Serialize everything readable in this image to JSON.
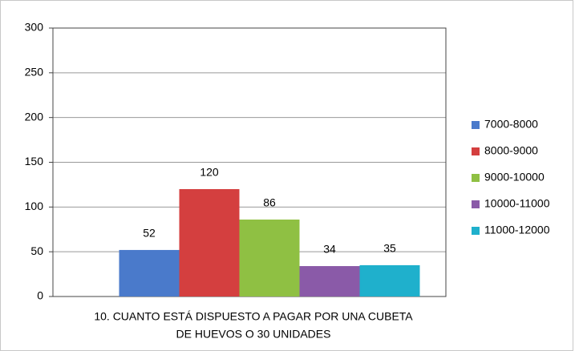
{
  "chart_data": {
    "type": "bar",
    "categories": [
      null
    ],
    "xlabel": [
      "10. CUANTO ESTÁ DISPUESTO A PAGAR POR UNA CUBETA",
      "DE HUEVOS O 30 UNIDADES"
    ],
    "series": [
      {
        "name": "7000-8000",
        "color": "#4a7acb",
        "values": [
          52
        ]
      },
      {
        "name": "8000-9000",
        "color": "#d43f3f",
        "values": [
          120
        ]
      },
      {
        "name": "9000-10000",
        "color": "#8fc043",
        "values": [
          86
        ]
      },
      {
        "name": "10000-11000",
        "color": "#8a5aa8",
        "values": [
          34
        ]
      },
      {
        "name": "11000-12000",
        "color": "#1fb0cc",
        "values": [
          35
        ]
      }
    ],
    "ylim": [
      0,
      300
    ],
    "yticks": [
      0,
      50,
      100,
      150,
      200,
      250,
      300
    ],
    "grid": true,
    "legend": "right"
  }
}
